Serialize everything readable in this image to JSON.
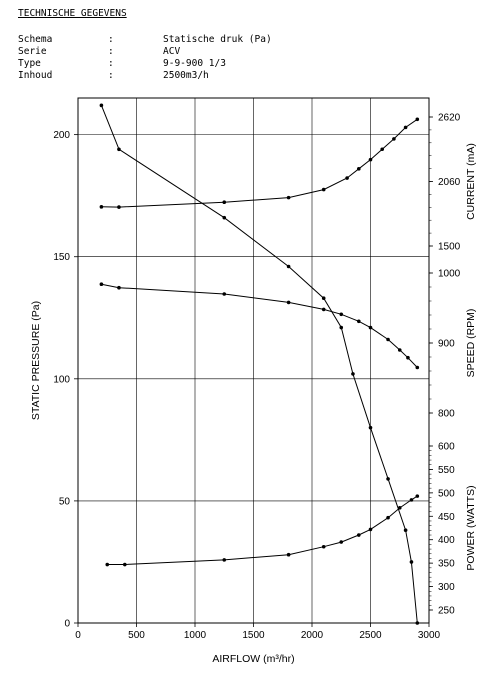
{
  "header": {
    "title": "TECHNISCHE GEGEVENS",
    "rows": [
      {
        "label": "Schema",
        "sep": ":",
        "value": "Statische druk (Pa)"
      },
      {
        "label": "Serie",
        "sep": ":",
        "value": "ACV"
      },
      {
        "label": "Type",
        "sep": ":",
        "value": "9-9-900 1/3"
      },
      {
        "label": "Inhoud",
        "sep": ":",
        "value": "2500m3/h"
      }
    ]
  },
  "chart_data": {
    "type": "line",
    "xlabel": "AIRFLOW (m³/hr)",
    "xlim": [
      0,
      3000
    ],
    "xticks": [
      0,
      500,
      1000,
      1500,
      2000,
      2500,
      3000
    ],
    "ylabel": "STATIC PRESSURE (Pa)",
    "ylim": [
      0,
      215
    ],
    "yticks": [
      0,
      50,
      100,
      150,
      200
    ],
    "grid": true,
    "right_axes": [
      {
        "label": "CURRENT (mA)",
        "ticks": [
          1500,
          2060,
          2620
        ],
        "range": [
          1500,
          2620
        ]
      },
      {
        "label": "SPEED (RPM)",
        "ticks": [
          800,
          900,
          1000
        ],
        "range": [
          800,
          1000
        ]
      },
      {
        "label": "POWER (WATTS)",
        "ticks": [
          250,
          300,
          350,
          400,
          450,
          500,
          550,
          600
        ],
        "range": [
          250,
          600
        ]
      }
    ],
    "series": [
      {
        "axis": "left",
        "points": [
          [
            200,
            212
          ],
          [
            350,
            194
          ],
          [
            1250,
            166
          ],
          [
            1800,
            146
          ],
          [
            2100,
            133
          ],
          [
            2250,
            121
          ],
          [
            2350,
            102
          ],
          [
            2500,
            80
          ],
          [
            2650,
            59
          ],
          [
            2800,
            38
          ],
          [
            2850,
            25
          ],
          [
            2900,
            0
          ]
        ]
      },
      {
        "axis": "right-1",
        "points": [
          [
            200,
            1840
          ],
          [
            350,
            1838
          ],
          [
            1250,
            1880
          ],
          [
            1800,
            1920
          ],
          [
            2100,
            1990
          ],
          [
            2300,
            2090
          ],
          [
            2400,
            2170
          ],
          [
            2500,
            2250
          ],
          [
            2600,
            2340
          ],
          [
            2700,
            2430
          ],
          [
            2800,
            2530
          ],
          [
            2900,
            2600
          ]
        ]
      },
      {
        "axis": "right-2",
        "points": [
          [
            200,
            984
          ],
          [
            350,
            979
          ],
          [
            1250,
            970
          ],
          [
            1800,
            958
          ],
          [
            2100,
            948
          ],
          [
            2250,
            941
          ],
          [
            2400,
            931
          ],
          [
            2500,
            922
          ],
          [
            2650,
            905
          ],
          [
            2750,
            890
          ],
          [
            2820,
            879
          ],
          [
            2900,
            865
          ]
        ]
      },
      {
        "axis": "right-3",
        "points": [
          [
            250,
            347
          ],
          [
            400,
            347
          ],
          [
            1250,
            357
          ],
          [
            1800,
            368
          ],
          [
            2100,
            385
          ],
          [
            2250,
            395
          ],
          [
            2400,
            410
          ],
          [
            2500,
            422
          ],
          [
            2650,
            447
          ],
          [
            2750,
            468
          ],
          [
            2850,
            485
          ],
          [
            2900,
            493
          ]
        ]
      }
    ]
  }
}
